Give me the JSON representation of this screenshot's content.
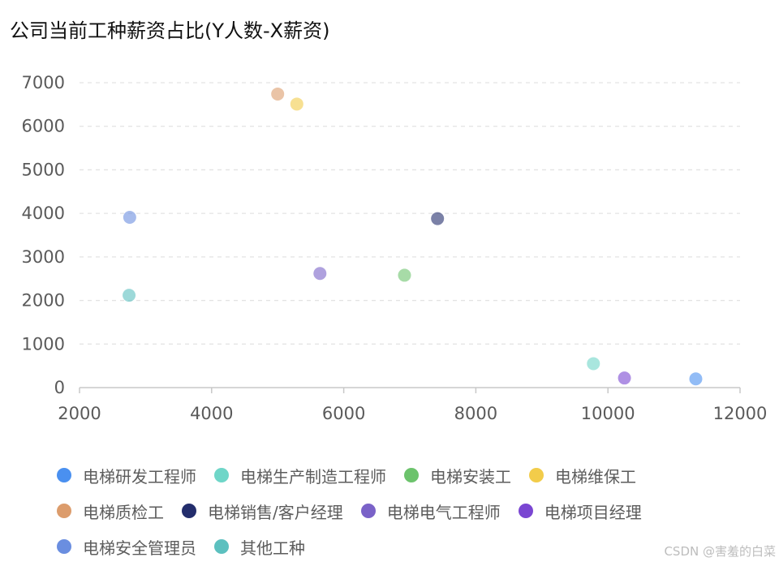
{
  "chart_data": {
    "type": "scatter",
    "title": "公司当前工种薪资占比(Y人数-X薪资)",
    "xlabel": "",
    "ylabel": "",
    "xlim": [
      2000,
      12000
    ],
    "ylim": [
      0,
      7000
    ],
    "x_ticks": [
      "2000",
      "4000",
      "6000",
      "8000",
      "10000",
      "12000"
    ],
    "y_ticks": [
      "0",
      "1000",
      "2000",
      "3000",
      "4000",
      "5000",
      "6000",
      "7000"
    ],
    "grid": "horizontal dashed",
    "legend_position": "bottom",
    "series": [
      {
        "name": "电梯研发工程师",
        "color": "#4a90f0",
        "points": [
          {
            "x": 11330,
            "y": 200
          }
        ]
      },
      {
        "name": "电梯生产制造工程师",
        "color": "#6fd6c8",
        "points": [
          {
            "x": 9780,
            "y": 550
          }
        ]
      },
      {
        "name": "电梯安装工",
        "color": "#6cc36c",
        "points": [
          {
            "x": 6920,
            "y": 2580
          }
        ]
      },
      {
        "name": "电梯维保工",
        "color": "#f2cc4a",
        "points": [
          {
            "x": 5290,
            "y": 6510
          }
        ]
      },
      {
        "name": "电梯质检工",
        "color": "#dc9c6c",
        "points": [
          {
            "x": 5000,
            "y": 6740
          }
        ]
      },
      {
        "name": "电梯销售/客户经理",
        "color": "#232d6c",
        "points": [
          {
            "x": 7420,
            "y": 3880
          }
        ]
      },
      {
        "name": "电梯电气工程师",
        "color": "#7a62c8",
        "points": [
          {
            "x": 5640,
            "y": 2620
          }
        ]
      },
      {
        "name": "电梯项目经理",
        "color": "#7a46d2",
        "points": [
          {
            "x": 10250,
            "y": 220
          }
        ]
      },
      {
        "name": "电梯安全管理员",
        "color": "#6a8ee0",
        "points": [
          {
            "x": 2760,
            "y": 3910
          }
        ]
      },
      {
        "name": "其他工种",
        "color": "#5cc0bf",
        "points": [
          {
            "x": 2750,
            "y": 2120
          }
        ]
      }
    ]
  },
  "watermark": "CSDN @害羞的白菜"
}
